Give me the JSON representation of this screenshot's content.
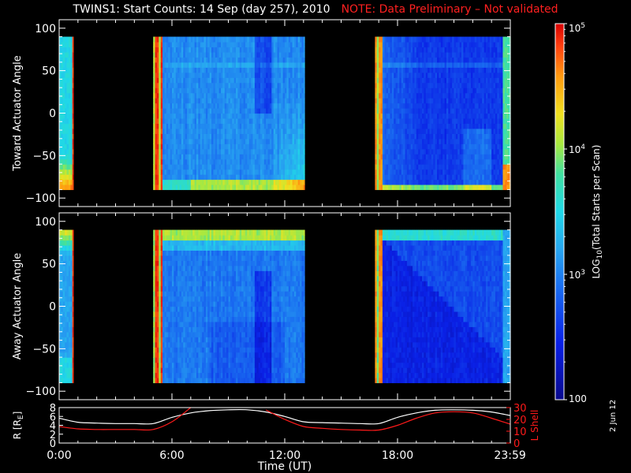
{
  "title": "TWINS1: Start Counts: 14 Sep (day 257), 2010",
  "note": "NOTE: Data Preliminary – Not validated",
  "run_date": "2 Jun 12",
  "colors": {
    "background": "#000000",
    "foreground": "#ffffff",
    "note": "#ff2020",
    "lshell": "#ff1a1a"
  },
  "chart_data": [
    {
      "type": "heatmap",
      "panel": "toward",
      "ylabel": "Toward Actuator Angle",
      "x_unit": "hours UT",
      "xlim": [
        0,
        24
      ],
      "ylim": [
        -110,
        110
      ],
      "yticks": [
        "100",
        "50",
        "0",
        "−50",
        "−100"
      ],
      "ytick_values": [
        100,
        50,
        0,
        -50,
        -100
      ],
      "angle_range": [
        -90,
        90
      ],
      "data_segments": [
        {
          "start": 0.0,
          "end": 0.75
        },
        {
          "start": 5.0,
          "end": 13.05
        },
        {
          "start": 16.8,
          "end": 24.0
        }
      ],
      "gap_segments": [
        {
          "start": 0.75,
          "end": 5.0
        },
        {
          "start": 13.05,
          "end": 16.8
        }
      ],
      "approx_log10_counts": {
        "0.0-0.75": "3.4 to 4.0, peak ~4.5 near -80",
        "5.0-5.5": "~4.8 (saturated band)",
        "5.5-11.0": "~3.0 to 3.3",
        "11.0-13.05": "~3.2 to 3.8, rising to ~4.5 near -80",
        "16.8-17.2": "~4.6 (saturated band)",
        "17.2-23.6": "~2.5 to 2.9",
        "23.6-24.0": "~3.8 to 4.5"
      }
    },
    {
      "type": "heatmap",
      "panel": "away",
      "ylabel": "Away Actuator Angle",
      "x_unit": "hours UT",
      "xlim": [
        0,
        24
      ],
      "ylim": [
        -110,
        110
      ],
      "yticks": [
        "100",
        "50",
        "0",
        "−50",
        "−100"
      ],
      "ytick_values": [
        100,
        50,
        0,
        -50,
        -100
      ],
      "angle_range": [
        -90,
        90
      ],
      "data_segments": [
        {
          "start": 0.0,
          "end": 0.75
        },
        {
          "start": 5.0,
          "end": 13.05
        },
        {
          "start": 16.8,
          "end": 24.0
        }
      ],
      "gap_segments": [
        {
          "start": 0.75,
          "end": 5.0
        },
        {
          "start": 13.05,
          "end": 16.8
        }
      ],
      "approx_log10_counts": {
        "0.0-0.75": "~3.3, peak ~4.3 near +80",
        "5.0-5.5": "~4.8 (saturated band)",
        "5.5-13.05": "~2.8 to 3.2, ~4.0 near +85",
        "16.8-17.2": "~4.6 (saturated band)",
        "17.2-23.6": "~2.3 to 2.7",
        "23.6-24.0": "~3.2"
      }
    },
    {
      "type": "line",
      "panel": "orbit",
      "xlabel": "Time (UT)",
      "xticks": [
        "0:00",
        "6:00",
        "12:00",
        "18:00",
        "23:59"
      ],
      "xtick_values": [
        0,
        6,
        12,
        18,
        23.983
      ],
      "ylabel_left": "R [R",
      "ylabel_left_sub": "E",
      "ylabel_left_close": "]",
      "ylabel_right": "L Shell",
      "left_ylim": [
        0,
        8
      ],
      "left_yticks": [
        "8",
        "6",
        "4",
        "2",
        "0"
      ],
      "left_ytick_values": [
        8,
        6,
        4,
        2,
        0
      ],
      "right_ylim": [
        0,
        30
      ],
      "right_yticks": [
        "30",
        "20",
        "10",
        "0"
      ],
      "right_ytick_values": [
        30,
        20,
        10,
        0
      ],
      "series": [
        {
          "axis": "left",
          "color": "#ffffff",
          "x": [
            0,
            1,
            2,
            3,
            4,
            5,
            6,
            7,
            8,
            9,
            10,
            11,
            12,
            13,
            14,
            15,
            16,
            17,
            18,
            19,
            20,
            21,
            22,
            23,
            24
          ],
          "y": [
            5.6,
            4.7,
            4.5,
            4.4,
            4.4,
            4.4,
            5.8,
            6.8,
            7.3,
            7.5,
            7.5,
            7.0,
            6.0,
            4.8,
            4.6,
            4.5,
            4.4,
            4.4,
            5.8,
            6.8,
            7.4,
            7.5,
            7.4,
            7.0,
            6.2
          ]
        },
        {
          "axis": "right",
          "color": "#ff1a1a",
          "x": [
            0,
            1,
            2,
            3,
            4,
            5,
            6,
            7,
            8,
            9,
            10,
            11,
            12,
            13,
            14,
            15,
            16,
            17,
            18,
            19,
            20,
            21,
            22,
            23,
            24
          ],
          "y": [
            14,
            12,
            11.5,
            11.5,
            11.5,
            11.5,
            18,
            30,
            null,
            null,
            null,
            28,
            20,
            14,
            12.5,
            11.5,
            11,
            11,
            15,
            21,
            25.5,
            26.5,
            25.5,
            21,
            16
          ]
        }
      ]
    }
  ],
  "colorbar": {
    "label_prefix": "LOG",
    "label_sub": "10",
    "label_suffix": "(Total Starts per Scan)",
    "range": [
      100,
      100000
    ],
    "ticks": [
      {
        "value": 100000,
        "base": "10",
        "exp": "5"
      },
      {
        "value": 10000,
        "base": "10",
        "exp": "4"
      },
      {
        "value": 1000,
        "base": "10",
        "exp": "3"
      },
      {
        "value": 100,
        "base": "100",
        "exp": ""
      }
    ]
  }
}
